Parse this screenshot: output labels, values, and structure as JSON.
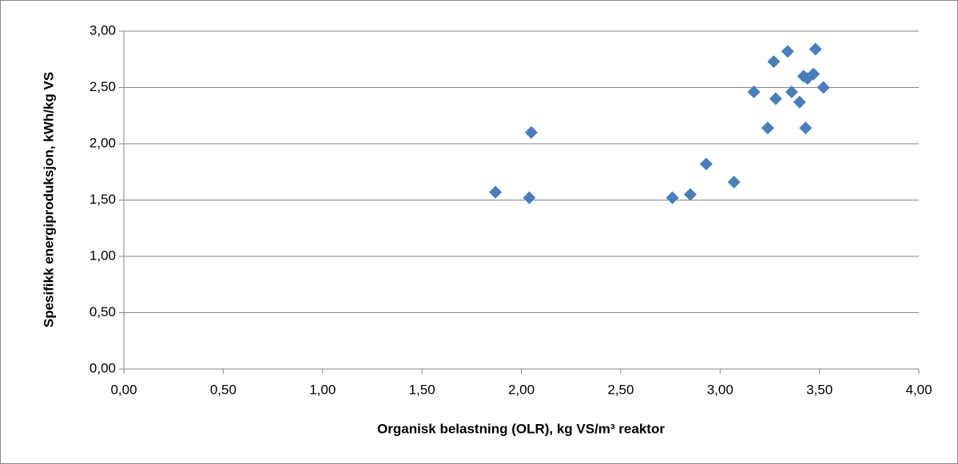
{
  "chart_data": {
    "type": "scatter",
    "x_label": "Organisk belastning (OLR), kg VS/m³ reaktor",
    "y_label": "Spesifikk energiproduksjon, kWh/kg VS",
    "x": [
      1.87,
      2.04,
      2.05,
      2.76,
      2.85,
      2.93,
      3.07,
      3.17,
      3.24,
      3.27,
      3.28,
      3.34,
      3.36,
      3.4,
      3.42,
      3.43,
      3.44,
      3.47,
      3.48,
      3.52
    ],
    "values": [
      1.57,
      1.52,
      2.1,
      1.52,
      1.55,
      1.82,
      1.66,
      2.46,
      2.14,
      2.73,
      2.4,
      2.82,
      2.46,
      2.37,
      2.6,
      2.14,
      2.58,
      2.62,
      2.84,
      2.5
    ],
    "color": "#4a7ebb",
    "xlim": [
      0,
      4
    ],
    "ylim": [
      0,
      3
    ],
    "xticks": [
      {
        "value": 0,
        "label": "0,00"
      },
      {
        "value": 0.5,
        "label": "0,50"
      },
      {
        "value": 1,
        "label": "1,00"
      },
      {
        "value": 1.5,
        "label": "1,50"
      },
      {
        "value": 2,
        "label": "2,00"
      },
      {
        "value": 2.5,
        "label": "2,50"
      },
      {
        "value": 3,
        "label": "3,00"
      },
      {
        "value": 3.5,
        "label": "3,50"
      },
      {
        "value": 4,
        "label": "4,00"
      }
    ],
    "yticks": [
      {
        "value": 0,
        "label": "0,00"
      },
      {
        "value": 0.5,
        "label": "0,50"
      },
      {
        "value": 1,
        "label": "1,00"
      },
      {
        "value": 1.5,
        "label": "1,50"
      },
      {
        "value": 2,
        "label": "2,00"
      },
      {
        "value": 2.5,
        "label": "2,50"
      },
      {
        "value": 3,
        "label": "3,00"
      }
    ],
    "grid": true
  }
}
